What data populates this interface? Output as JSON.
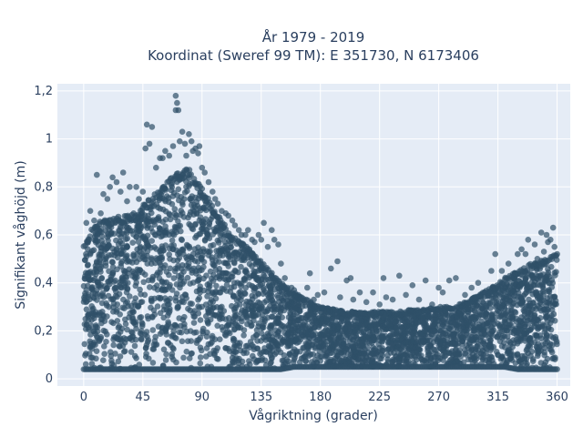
{
  "chart_data": {
    "type": "scatter",
    "title_line1": "År 1979 - 2019",
    "title_line2": "Koordinat (Sweref 99 TM): E 351730, N 6173406",
    "xlabel": "Vågriktning (grader)",
    "ylabel": "Signifikant våghöjd (m)",
    "xlim": [
      -20,
      370
    ],
    "ylim": [
      -0.03,
      1.23
    ],
    "xticks": [
      0,
      45,
      90,
      135,
      180,
      225,
      270,
      315,
      360
    ],
    "xtick_labels": [
      "0",
      "45",
      "90",
      "135",
      "180",
      "225",
      "270",
      "315",
      "360"
    ],
    "yticks": [
      0,
      0.2,
      0.4,
      0.6,
      0.8,
      1.0,
      1.2
    ],
    "ytick_labels": [
      "0",
      "0,2",
      "0,4",
      "0,6",
      "0,8",
      "1",
      "1,2"
    ],
    "grid": true,
    "plot_background": "#e5ecf6",
    "marker_color": "#2f5068",
    "envelope": {
      "x": [
        0,
        5,
        10,
        20,
        30,
        40,
        50,
        60,
        70,
        80,
        90,
        100,
        110,
        120,
        130,
        140,
        150,
        160,
        170,
        180,
        190,
        200,
        210,
        220,
        230,
        240,
        250,
        260,
        270,
        280,
        290,
        300,
        310,
        320,
        330,
        340,
        350,
        360
      ],
      "lower": [
        0.04,
        0.04,
        0.04,
        0.04,
        0.04,
        0.04,
        0.04,
        0.04,
        0.04,
        0.04,
        0.04,
        0.04,
        0.04,
        0.04,
        0.04,
        0.04,
        0.04,
        0.05,
        0.05,
        0.05,
        0.05,
        0.05,
        0.05,
        0.05,
        0.05,
        0.05,
        0.05,
        0.05,
        0.05,
        0.05,
        0.05,
        0.05,
        0.05,
        0.05,
        0.04,
        0.04,
        0.04,
        0.04
      ],
      "upper": [
        0.56,
        0.62,
        0.65,
        0.67,
        0.68,
        0.7,
        0.75,
        0.8,
        0.86,
        0.88,
        0.8,
        0.7,
        0.62,
        0.57,
        0.52,
        0.46,
        0.4,
        0.36,
        0.33,
        0.3,
        0.29,
        0.28,
        0.28,
        0.28,
        0.28,
        0.28,
        0.29,
        0.29,
        0.3,
        0.3,
        0.32,
        0.35,
        0.38,
        0.42,
        0.45,
        0.48,
        0.5,
        0.52
      ]
    },
    "outliers": {
      "x": [
        2,
        5,
        8,
        10,
        13,
        15,
        18,
        20,
        22,
        25,
        28,
        30,
        33,
        35,
        38,
        40,
        42,
        45,
        47,
        48,
        50,
        52,
        55,
        58,
        60,
        62,
        65,
        68,
        70,
        70,
        71,
        72,
        73,
        75,
        77,
        78,
        80,
        82,
        83,
        85,
        87,
        88,
        90,
        92,
        95,
        98,
        100,
        102,
        105,
        108,
        110,
        113,
        115,
        118,
        120,
        123,
        125,
        128,
        130,
        133,
        135,
        137,
        140,
        143,
        145,
        148,
        150,
        153,
        155,
        158,
        160,
        163,
        165,
        170,
        172,
        175,
        178,
        183,
        188,
        193,
        195,
        200,
        203,
        205,
        210,
        215,
        220,
        225,
        228,
        230,
        235,
        240,
        245,
        250,
        255,
        260,
        265,
        270,
        273,
        278,
        283,
        290,
        295,
        300,
        305,
        310,
        313,
        318,
        320,
        323,
        328,
        330,
        333,
        336,
        338,
        340,
        343,
        345,
        348,
        350,
        352,
        353,
        355,
        357,
        358
      ],
      "y": [
        0.65,
        0.7,
        0.66,
        0.85,
        0.69,
        0.77,
        0.75,
        0.8,
        0.84,
        0.82,
        0.78,
        0.86,
        0.74,
        0.8,
        0.69,
        0.8,
        0.75,
        0.78,
        0.96,
        1.06,
        0.98,
        1.05,
        0.88,
        0.92,
        0.92,
        0.95,
        0.93,
        0.97,
        1.12,
        1.18,
        1.15,
        1.12,
        0.99,
        1.03,
        0.98,
        0.93,
        1.02,
        0.99,
        0.95,
        0.96,
        0.94,
        0.97,
        0.88,
        0.86,
        0.82,
        0.78,
        0.75,
        0.73,
        0.7,
        0.69,
        0.68,
        0.66,
        0.64,
        0.62,
        0.6,
        0.6,
        0.62,
        0.58,
        0.57,
        0.6,
        0.58,
        0.65,
        0.55,
        0.62,
        0.58,
        0.56,
        0.48,
        0.42,
        0.38,
        0.38,
        0.37,
        0.34,
        0.33,
        0.38,
        0.44,
        0.33,
        0.35,
        0.36,
        0.46,
        0.49,
        0.34,
        0.41,
        0.42,
        0.33,
        0.36,
        0.32,
        0.36,
        0.31,
        0.42,
        0.34,
        0.33,
        0.43,
        0.35,
        0.39,
        0.33,
        0.41,
        0.31,
        0.38,
        0.36,
        0.41,
        0.42,
        0.35,
        0.38,
        0.4,
        0.36,
        0.45,
        0.52,
        0.45,
        0.38,
        0.48,
        0.44,
        0.52,
        0.54,
        0.52,
        0.58,
        0.47,
        0.56,
        0.5,
        0.61,
        0.53,
        0.6,
        0.57,
        0.58,
        0.63,
        0.55
      ]
    }
  }
}
